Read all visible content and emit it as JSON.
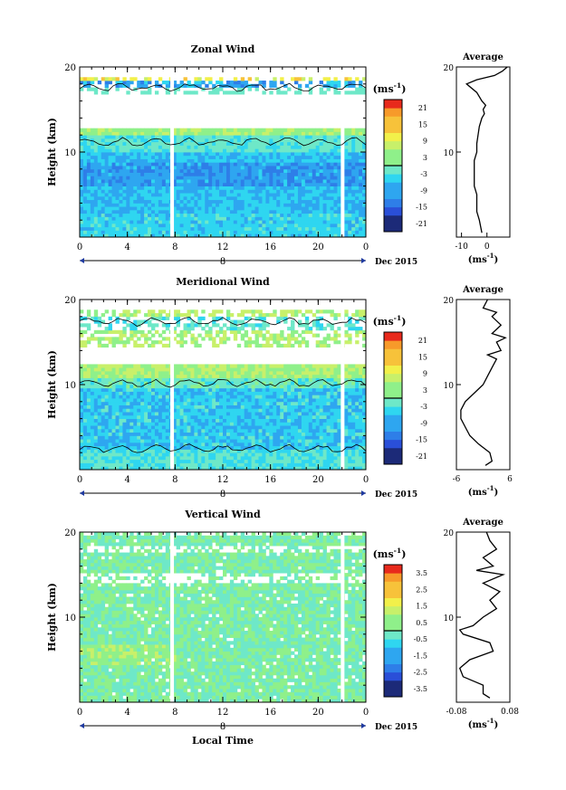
{
  "chart_data": [
    {
      "type": "heatmap",
      "title": "Zonal Wind",
      "ylabel": "Height (km)",
      "xlabel": "",
      "ylim": [
        0,
        20
      ],
      "xlim": [
        0,
        24
      ],
      "x_ticks": [
        "0",
        "4",
        "8",
        "12",
        "16",
        "20",
        "0"
      ],
      "y_ticks": [
        "10",
        "20"
      ],
      "date_marker": "8",
      "date_label": "Dec 2015",
      "colorbar": {
        "unit": "(ms",
        "exp": "-1",
        "unit_close": ")",
        "ticks": [
          "21",
          "15",
          "9",
          "3",
          "-3",
          "-9",
          "-15",
          "-21"
        ],
        "range": [
          -24,
          24
        ]
      },
      "profile": {
        "title": "Average",
        "xlabel": "(ms",
        "xlabel_exp": "-1",
        "xlabel_close": ")",
        "x_ticks": [
          "-10",
          "0"
        ],
        "x_tick_values": [
          -10,
          0
        ],
        "xlim": [
          -12,
          9
        ],
        "y_ticks": [
          "10",
          "20"
        ],
        "heights": [
          0.5,
          2,
          3,
          4,
          5,
          6,
          7,
          8,
          9,
          9.5,
          10,
          11,
          12,
          13,
          14,
          14.5,
          15,
          15.5,
          16,
          17,
          18,
          18.5,
          19,
          19.5,
          20
        ],
        "values": [
          -2,
          -3,
          -4,
          -4,
          -4,
          -5,
          -5,
          -5,
          -5,
          -4.5,
          -4,
          -4,
          -3.5,
          -3,
          -2,
          -1,
          -1.5,
          -0.5,
          -2,
          -4,
          -8,
          -4,
          3,
          6,
          8
        ]
      }
    },
    {
      "type": "heatmap",
      "title": "Meridional Wind",
      "ylabel": "Height (km)",
      "xlabel": "",
      "ylim": [
        0,
        20
      ],
      "xlim": [
        0,
        24
      ],
      "x_ticks": [
        "0",
        "4",
        "8",
        "12",
        "16",
        "20",
        "0"
      ],
      "y_ticks": [
        "10",
        "20"
      ],
      "date_marker": "8",
      "date_label": "Dec 2015",
      "colorbar": {
        "unit": "(ms",
        "exp": "-1",
        "unit_close": ")",
        "ticks": [
          "21",
          "15",
          "9",
          "3",
          "-3",
          "-9",
          "-15",
          "-21"
        ],
        "range": [
          -24,
          24
        ]
      },
      "profile": {
        "title": "Average",
        "xlabel": "(ms",
        "xlabel_exp": "-1",
        "xlabel_close": ")",
        "x_ticks": [
          "-6",
          "6"
        ],
        "x_tick_values": [
          -6,
          6
        ],
        "xlim": [
          -6,
          6
        ],
        "y_ticks": [
          "10",
          "20"
        ],
        "heights": [
          0.5,
          1,
          2,
          3,
          4,
          5,
          6,
          7,
          8,
          9,
          10,
          11,
          12,
          13,
          13.5,
          14,
          15,
          15.5,
          16,
          17,
          18,
          18.5,
          19,
          20
        ],
        "values": [
          0.5,
          2,
          1.5,
          -1,
          -3,
          -4,
          -5,
          -5,
          -4,
          -2,
          0,
          1,
          2,
          3,
          1,
          4,
          3,
          5,
          2,
          4,
          2,
          3,
          0,
          1
        ]
      }
    },
    {
      "type": "heatmap",
      "title": "Vertical Wind",
      "ylabel": "Height (km)",
      "xlabel": "Local Time",
      "ylim": [
        0,
        20
      ],
      "xlim": [
        0,
        24
      ],
      "x_ticks": [
        "0",
        "4",
        "8",
        "12",
        "16",
        "20",
        "0"
      ],
      "y_ticks": [
        "10",
        "20"
      ],
      "date_marker": "8",
      "date_label": "Dec 2015",
      "colorbar": {
        "unit": "(ms",
        "exp": "-1",
        "unit_close": ")",
        "ticks": [
          "3.5",
          "2.5",
          "1.5",
          "0.5",
          "-0.5",
          "-1.5",
          "-2.5",
          "-3.5"
        ],
        "range": [
          -4,
          4
        ]
      },
      "profile": {
        "title": "Average",
        "xlabel": "(ms",
        "xlabel_exp": "-1",
        "xlabel_close": ")",
        "x_ticks": [
          "-0.08",
          "0.08"
        ],
        "x_tick_values": [
          -0.08,
          0.08
        ],
        "xlim": [
          -0.08,
          0.08
        ],
        "y_ticks": [
          "10",
          "20"
        ],
        "heights": [
          0.5,
          1,
          2,
          3,
          4,
          5,
          6,
          7,
          8,
          8.5,
          9,
          10,
          11,
          12,
          13,
          14,
          15,
          15.5,
          16,
          17,
          18,
          19,
          20
        ],
        "values": [
          0.02,
          0.0,
          0.0,
          -0.06,
          -0.07,
          -0.04,
          0.03,
          0.02,
          -0.06,
          -0.07,
          -0.03,
          0.0,
          0.04,
          0.02,
          0.05,
          0.0,
          0.06,
          -0.02,
          0.03,
          0.0,
          0.04,
          0.02,
          0.01
        ]
      }
    }
  ]
}
